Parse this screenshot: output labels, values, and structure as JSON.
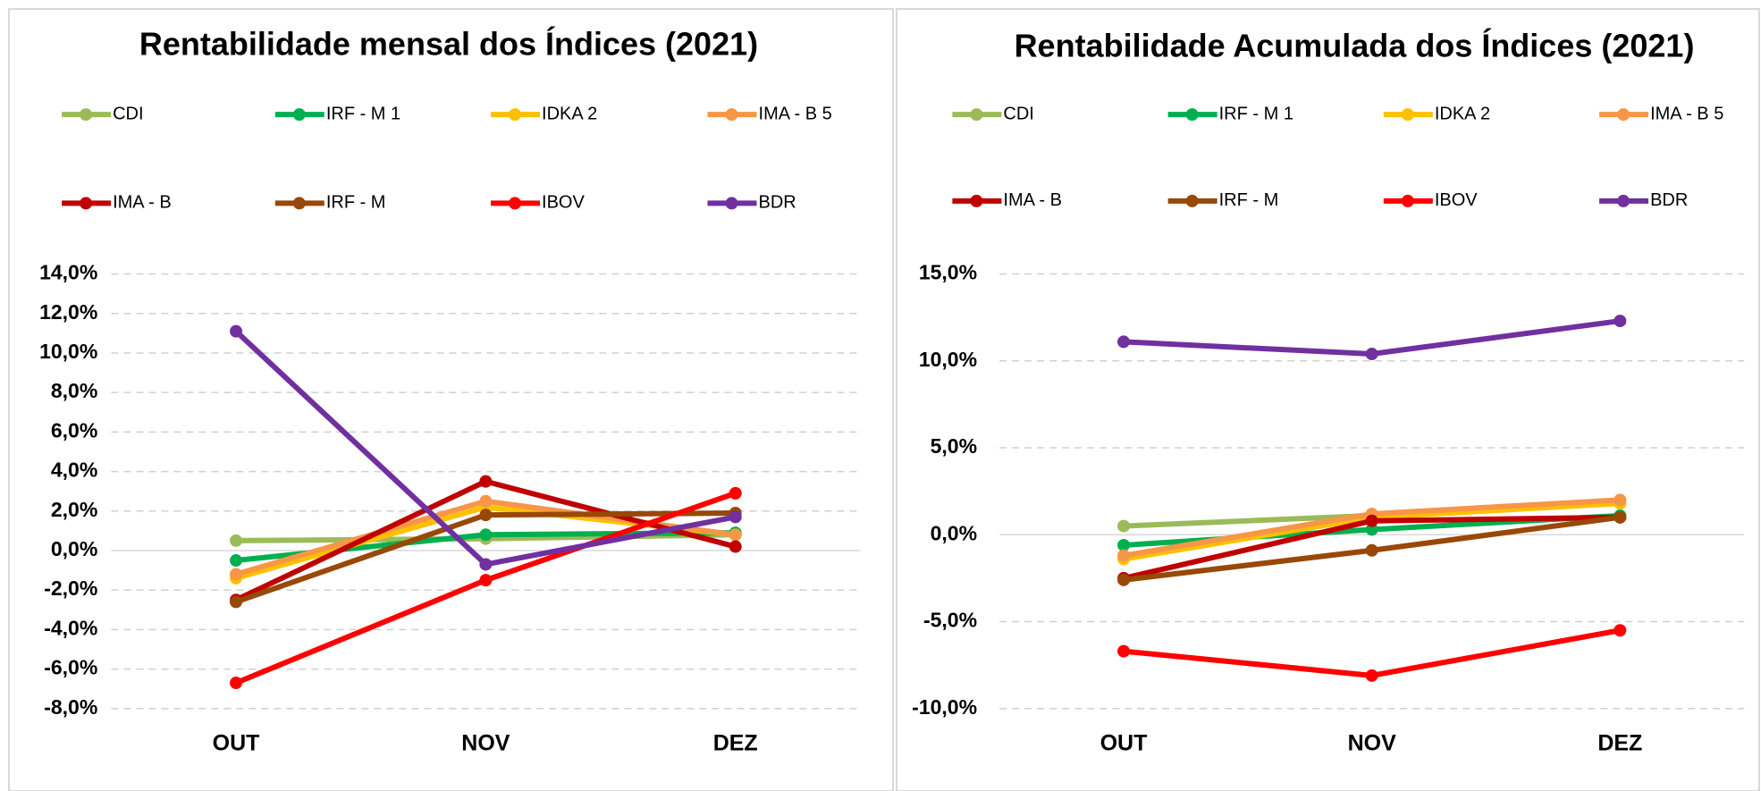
{
  "chart_data": [
    {
      "type": "line",
      "title": "Rentabilidade mensal dos Índices (2021)",
      "categories": [
        "OUT",
        "NOV",
        "DEZ"
      ],
      "ylim": [
        -8,
        14
      ],
      "yticks": [
        {
          "value": -8,
          "label": "-8,0%"
        },
        {
          "value": -6,
          "label": "-6,0%"
        },
        {
          "value": -4,
          "label": "-4,0%"
        },
        {
          "value": -2,
          "label": "-2,0%"
        },
        {
          "value": 0,
          "label": "0,0%"
        },
        {
          "value": 2,
          "label": "2,0%"
        },
        {
          "value": 4,
          "label": "4,0%"
        },
        {
          "value": 6,
          "label": "6,0%"
        },
        {
          "value": 8,
          "label": "8,0%"
        },
        {
          "value": 10,
          "label": "10,0%"
        },
        {
          "value": 12,
          "label": "12,0%"
        },
        {
          "value": 14,
          "label": "14,0%"
        }
      ],
      "grid": true,
      "legend": "top",
      "series": [
        {
          "name": "CDI",
          "color": "#9bbb59",
          "values": [
            0.5,
            0.6,
            0.8
          ]
        },
        {
          "name": "IRF - M 1",
          "color": "#00b050",
          "values": [
            -0.5,
            0.8,
            0.9
          ]
        },
        {
          "name": "IDKA 2",
          "color": "#ffc000",
          "values": [
            -1.4,
            2.2,
            0.8
          ]
        },
        {
          "name": "IMA - B 5",
          "color": "#f79646",
          "values": [
            -1.2,
            2.5,
            0.8
          ]
        },
        {
          "name": "IMA - B",
          "color": "#c00000",
          "values": [
            -2.5,
            3.5,
            0.2
          ]
        },
        {
          "name": "IRF - M",
          "color": "#984807",
          "values": [
            -2.6,
            1.8,
            1.9
          ]
        },
        {
          "name": "IBOV",
          "color": "#ff0000",
          "values": [
            -6.7,
            -1.5,
            2.9
          ]
        },
        {
          "name": "BDR",
          "color": "#7030a0",
          "values": [
            11.1,
            -0.7,
            1.7
          ]
        }
      ]
    },
    {
      "type": "line",
      "title": "Rentabilidade Acumulada dos Índices (2021)",
      "categories": [
        "OUT",
        "NOV",
        "DEZ"
      ],
      "ylim": [
        -10,
        15
      ],
      "yticks": [
        {
          "value": -10,
          "label": "-10,0%"
        },
        {
          "value": -5,
          "label": "-5,0%"
        },
        {
          "value": 0,
          "label": "0,0%"
        },
        {
          "value": 5,
          "label": "5,0%"
        },
        {
          "value": 10,
          "label": "10,0%"
        },
        {
          "value": 15,
          "label": "15,0%"
        }
      ],
      "grid": true,
      "legend": "top",
      "series": [
        {
          "name": "CDI",
          "color": "#9bbb59",
          "values": [
            0.5,
            1.1,
            1.9
          ]
        },
        {
          "name": "IRF - M 1",
          "color": "#00b050",
          "values": [
            -0.6,
            0.3,
            1.1
          ]
        },
        {
          "name": "IDKA 2",
          "color": "#ffc000",
          "values": [
            -1.4,
            1.0,
            1.8
          ]
        },
        {
          "name": "IMA - B 5",
          "color": "#f79646",
          "values": [
            -1.2,
            1.2,
            2.0
          ]
        },
        {
          "name": "IMA - B",
          "color": "#c00000",
          "values": [
            -2.5,
            0.8,
            1.0
          ]
        },
        {
          "name": "IRF - M",
          "color": "#984807",
          "values": [
            -2.6,
            -0.9,
            1.0
          ]
        },
        {
          "name": "IBOV",
          "color": "#ff0000",
          "values": [
            -6.7,
            -8.1,
            -5.5
          ]
        },
        {
          "name": "BDR",
          "color": "#7030a0",
          "values": [
            11.1,
            10.4,
            12.3
          ]
        }
      ]
    }
  ]
}
